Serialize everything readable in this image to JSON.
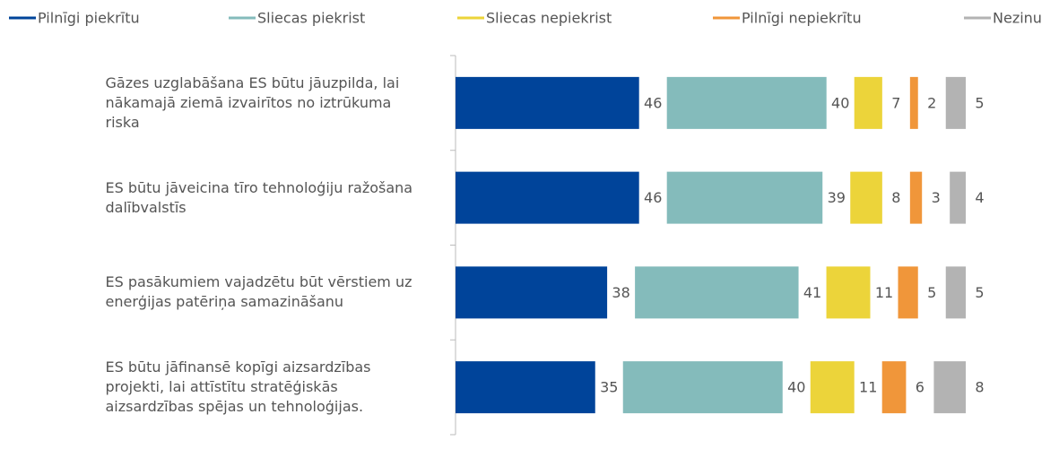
{
  "chart_data": {
    "type": "stacked-bar-horizontal",
    "categories": [
      "Gāzes uzglabāšana ES būtu jāuzpilda, lai nākamajā ziemā izvairītos no iztrūkuma riska",
      "ES būtu jāveicina tīro tehnoloģiju ražošana dalībvalstīs",
      "ES pasākumiem vajadzētu būt vērstiem uz enerģijas patēriņa samazināšanu",
      "ES būtu jāfinansē kopīgi aizsardzības projekti, lai attīstītu stratēģiskās aizsardzības spējas un tehnoloģijas."
    ],
    "series": [
      {
        "name": "Pilnīgi piekrītu",
        "color": "#00449a",
        "values": [
          46,
          46,
          38,
          35
        ]
      },
      {
        "name": "Sliecas piekrist",
        "color": "#84bbbb",
        "values": [
          40,
          39,
          41,
          40
        ]
      },
      {
        "name": "Sliecas nepiekrist",
        "color": "#ecd43a",
        "values": [
          7,
          8,
          11,
          11
        ]
      },
      {
        "name": "Pilnīgi nepiekrītu",
        "color": "#f0963a",
        "values": [
          2,
          3,
          5,
          6
        ]
      },
      {
        "name": "Nezinu",
        "color": "#b3b3b3",
        "values": [
          5,
          4,
          5,
          8
        ]
      }
    ]
  }
}
